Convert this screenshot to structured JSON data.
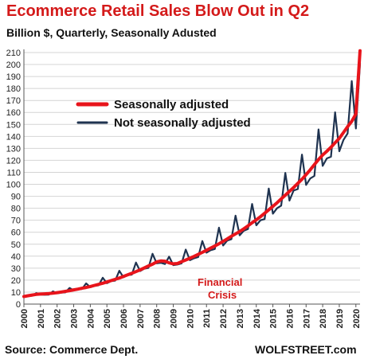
{
  "header": {
    "title": "Ecommerce Retail Sales Blow Out in Q2",
    "subtitle": "Billion $, Quarterly, Seasonally Adusted"
  },
  "footer": {
    "source": "Source: Commerce Dept.",
    "brand": "WOLFSTREET.com"
  },
  "colors": {
    "sa_line": "#e8141b",
    "nsa_line": "#1f3350",
    "grid": "#d4d4d4",
    "title": "#d41a1a"
  },
  "chart_data": {
    "type": "line",
    "title": "Ecommerce Retail Sales Blow Out in Q2",
    "subtitle": "Billion $, Quarterly, Seasonally Adusted",
    "xlabel": "",
    "ylabel": "",
    "ylim": [
      0,
      210
    ],
    "yticks": [
      0,
      10,
      20,
      30,
      40,
      50,
      60,
      70,
      80,
      90,
      100,
      110,
      120,
      130,
      140,
      150,
      160,
      170,
      180,
      190,
      200,
      210
    ],
    "xticks": [
      "2000",
      "2001",
      "2002",
      "2003",
      "2004",
      "2005",
      "2006",
      "2007",
      "2008",
      "2009",
      "2010",
      "2011",
      "2012",
      "2013",
      "2014",
      "2015",
      "2016",
      "2017",
      "2018",
      "2019",
      "2020"
    ],
    "grid": "horizontal",
    "legend_position": "top-left",
    "annotation": {
      "text": [
        "Financial",
        "Crisis"
      ],
      "x": 2009.6,
      "y": 28
    },
    "x": [
      2000.0,
      2000.25,
      2000.5,
      2000.75,
      2001.0,
      2001.25,
      2001.5,
      2001.75,
      2002.0,
      2002.25,
      2002.5,
      2002.75,
      2003.0,
      2003.25,
      2003.5,
      2003.75,
      2004.0,
      2004.25,
      2004.5,
      2004.75,
      2005.0,
      2005.25,
      2005.5,
      2005.75,
      2006.0,
      2006.25,
      2006.5,
      2006.75,
      2007.0,
      2007.25,
      2007.5,
      2007.75,
      2008.0,
      2008.25,
      2008.5,
      2008.75,
      2009.0,
      2009.25,
      2009.5,
      2009.75,
      2010.0,
      2010.25,
      2010.5,
      2010.75,
      2011.0,
      2011.25,
      2011.5,
      2011.75,
      2012.0,
      2012.25,
      2012.5,
      2012.75,
      2013.0,
      2013.25,
      2013.5,
      2013.75,
      2014.0,
      2014.25,
      2014.5,
      2014.75,
      2015.0,
      2015.25,
      2015.5,
      2015.75,
      2016.0,
      2016.25,
      2016.5,
      2016.75,
      2017.0,
      2017.25,
      2017.5,
      2017.75,
      2018.0,
      2018.25,
      2018.5,
      2018.75,
      2019.0,
      2019.25,
      2019.5,
      2019.75,
      2020.0,
      2020.25
    ],
    "series": [
      {
        "name": "Seasonally adjusted",
        "color": "#e8141b",
        "values": [
          6.3,
          7.0,
          7.6,
          8.1,
          8.4,
          8.6,
          8.8,
          9.1,
          9.6,
          10.1,
          10.6,
          11.2,
          11.9,
          12.5,
          13.2,
          13.9,
          14.7,
          15.6,
          16.5,
          17.4,
          18.5,
          19.6,
          20.7,
          21.8,
          23.1,
          24.4,
          25.7,
          27.1,
          28.6,
          30.2,
          31.8,
          33.3,
          35.2,
          36.0,
          35.8,
          34.4,
          33.6,
          33.9,
          35.4,
          36.8,
          38.3,
          39.8,
          41.5,
          43.2,
          44.9,
          46.7,
          48.5,
          50.4,
          52.4,
          54.4,
          56.6,
          58.6,
          60.6,
          62.9,
          65.3,
          67.9,
          70.4,
          73.0,
          75.8,
          78.7,
          81.6,
          84.6,
          87.8,
          91.0,
          94.1,
          97.3,
          100.8,
          104.2,
          108.1,
          112.1,
          116.4,
          120.7,
          124.5,
          127.6,
          130.9,
          134.7,
          138.4,
          143.2,
          148.1,
          152.6,
          158.7,
          211.5
        ]
      },
      {
        "name": "Not seasonally adjusted",
        "color": "#1f3350",
        "values": [
          6.0,
          7.0,
          7.0,
          9.2,
          8.0,
          7.8,
          7.9,
          10.6,
          9.0,
          9.5,
          9.8,
          13.5,
          11.5,
          12.2,
          12.6,
          17.3,
          14.1,
          15.2,
          15.7,
          22.0,
          17.4,
          19.2,
          19.6,
          27.8,
          22.4,
          24.2,
          24.6,
          34.7,
          27.6,
          29.5,
          30.2,
          42.0,
          34.0,
          34.5,
          33.4,
          39.6,
          32.5,
          33.0,
          34.0,
          45.5,
          36.6,
          38.3,
          39.2,
          52.6,
          42.9,
          45.0,
          46.0,
          63.8,
          48.9,
          53.0,
          54.2,
          73.8,
          57.4,
          61.3,
          62.7,
          83.6,
          65.8,
          70.0,
          71.0,
          96.5,
          75.5,
          80.0,
          82.2,
          109.5,
          86.4,
          94.8,
          96.0,
          124.8,
          99.5,
          104.9,
          107.0,
          145.8,
          115.4,
          121.6,
          123.0,
          160.1,
          127.6,
          137.0,
          142.5,
          186.2,
          146.6,
          201.1
        ]
      }
    ]
  }
}
